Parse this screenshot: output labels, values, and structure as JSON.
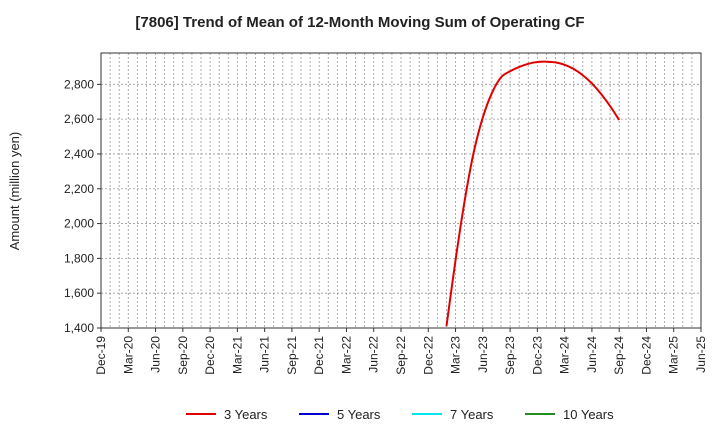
{
  "chart_data": {
    "type": "line",
    "title": "[7806]  Trend of Mean of 12-Month Moving Sum of Operating CF",
    "xlabel": "",
    "ylabel": "Amount (million yen)",
    "ylim": [
      1400,
      2980
    ],
    "yticks": [
      1400,
      1600,
      1800,
      2000,
      2200,
      2400,
      2600,
      2800
    ],
    "ytick_labels": [
      "1,400",
      "1,600",
      "1,800",
      "2,000",
      "2,200",
      "2,400",
      "2,600",
      "2,800"
    ],
    "x_range": [
      "2019-12",
      "2025-06"
    ],
    "x_tick_labels": [
      "Dec-19",
      "Mar-20",
      "Jun-20",
      "Sep-20",
      "Dec-20",
      "Mar-21",
      "Jun-21",
      "Sep-21",
      "Dec-21",
      "Mar-22",
      "Jun-22",
      "Sep-22",
      "Dec-22",
      "Mar-23",
      "Jun-23",
      "Sep-23",
      "Dec-23",
      "Mar-24",
      "Jun-24",
      "Sep-24",
      "Dec-24",
      "Mar-25",
      "Jun-25"
    ],
    "grid": true,
    "legend_position": "bottom",
    "series": [
      {
        "name": "3 Years",
        "color": "#e00000",
        "points": [
          [
            "2023-02",
            1410
          ],
          [
            "2023-03",
            1790
          ],
          [
            "2023-04",
            2130
          ],
          [
            "2023-05",
            2410
          ],
          [
            "2023-06",
            2610
          ],
          [
            "2023-07",
            2750
          ],
          [
            "2023-08",
            2840
          ],
          [
            "2023-09",
            2875
          ],
          [
            "2023-10",
            2900
          ],
          [
            "2023-11",
            2918
          ],
          [
            "2023-12",
            2928
          ],
          [
            "2024-01",
            2930
          ],
          [
            "2024-02",
            2926
          ],
          [
            "2024-03",
            2912
          ],
          [
            "2024-04",
            2888
          ],
          [
            "2024-05",
            2852
          ],
          [
            "2024-06",
            2805
          ],
          [
            "2024-07",
            2745
          ],
          [
            "2024-08",
            2675
          ],
          [
            "2024-09",
            2595
          ]
        ]
      },
      {
        "name": "5 Years",
        "color": "#0000cc",
        "points": []
      },
      {
        "name": "7 Years",
        "color": "#00e5ee",
        "points": []
      },
      {
        "name": "10 Years",
        "color": "#228b22",
        "points": []
      }
    ]
  }
}
